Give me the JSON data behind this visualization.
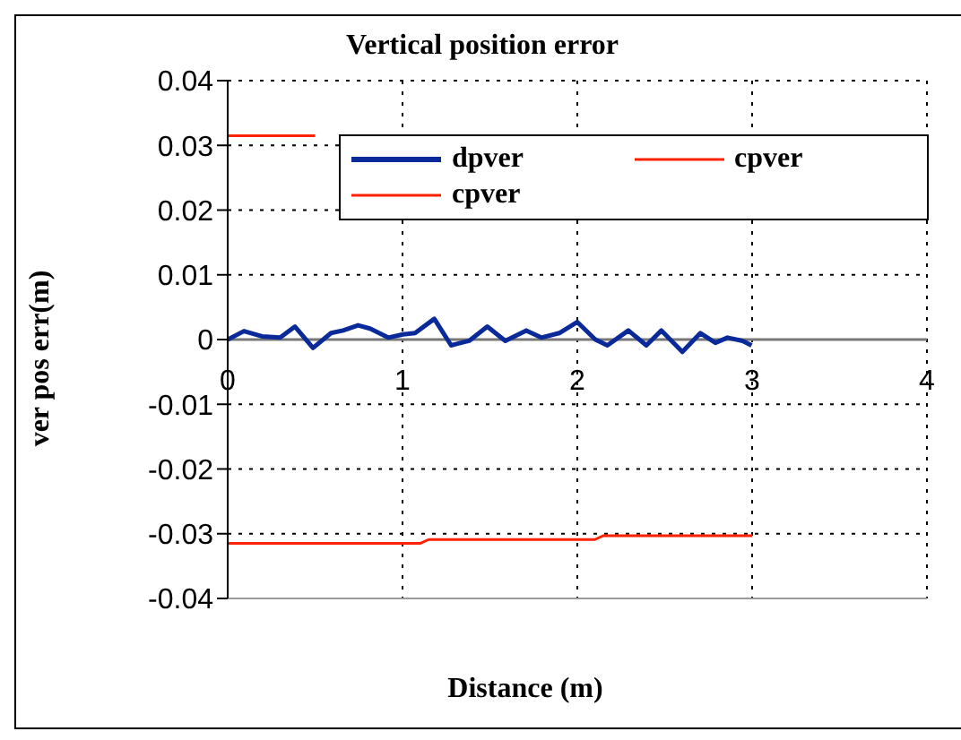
{
  "chart_data": {
    "type": "line",
    "title": "Vertical position error",
    "xlabel": "Distance (m)",
    "ylabel": "ver pos err(m)",
    "xlim": [
      0,
      4
    ],
    "xticks": [
      0,
      1,
      2,
      3,
      4
    ],
    "ylim": [
      -0.04,
      0.04
    ],
    "yticks": [
      -0.04,
      -0.03,
      -0.02,
      -0.01,
      0,
      0.01,
      0.02,
      0.03,
      0.04
    ],
    "grid": true,
    "legend": "top",
    "line_style": "solid",
    "marker": "none",
    "series": [
      {
        "name": "dpver",
        "color": "#0a2a9a",
        "x": [
          0,
          0.093,
          0.196,
          0.3,
          0.385,
          0.488,
          0.591,
          0.66,
          0.746,
          0.814,
          0.918,
          1.003,
          1.072,
          1.182,
          1.278,
          1.381,
          1.485,
          1.588,
          1.708,
          1.794,
          1.897,
          2.0,
          2.103,
          2.172,
          2.292,
          2.395,
          2.481,
          2.601,
          2.704,
          2.79,
          2.859,
          2.945,
          2.997
        ],
        "values": [
          0,
          0.0013,
          0.0005,
          0.0003,
          0.002,
          -0.0013,
          0.001,
          0.0014,
          0.0022,
          0.0017,
          0.0003,
          0.0008,
          0.001,
          0.0032,
          -0.0009,
          -0.0002,
          0.002,
          -0.0002,
          0.0014,
          0.0003,
          0.001,
          0.0027,
          0,
          -0.0009,
          0.0014,
          -0.0009,
          0.0014,
          -0.0019,
          0.001,
          -0.0005,
          0.0003,
          -0.0002,
          -0.0009
        ]
      },
      {
        "name": "cpver",
        "color": "#ff2000",
        "x": [
          0,
          0.5
        ],
        "values": [
          0.0315,
          0.0315
        ]
      },
      {
        "name": "cpver",
        "color": "#ff2000",
        "x": [
          0,
          1.1,
          1.15,
          2.1,
          2.15,
          3
        ],
        "values": [
          -0.0315,
          -0.0315,
          -0.0309,
          -0.0309,
          -0.0303,
          -0.0303
        ]
      }
    ]
  }
}
